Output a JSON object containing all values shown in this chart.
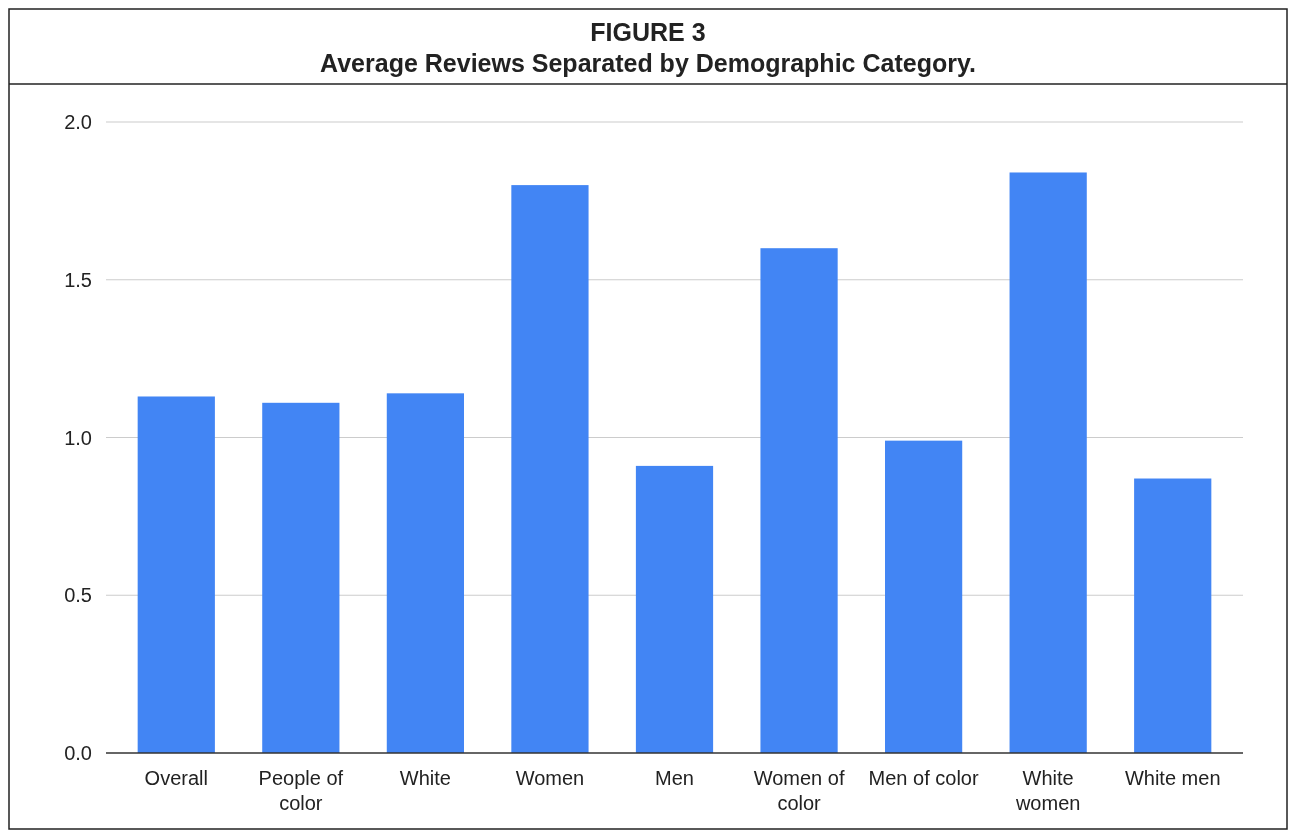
{
  "chart_data": {
    "type": "bar",
    "title": "FIGURE 3",
    "subtitle": "Average Reviews Separated by Demographic Category.",
    "categories": [
      "Overall",
      "People of color",
      "White",
      "Women",
      "Men",
      "Women of color",
      "Men of color",
      "White women",
      "White men"
    ],
    "values": [
      1.13,
      1.11,
      1.14,
      1.8,
      0.91,
      1.6,
      0.99,
      1.84,
      0.87
    ],
    "color": "#4285f4",
    "ylim": [
      0,
      2
    ],
    "yticks": [
      {
        "value": 0,
        "label": "0.0"
      },
      {
        "value": 0.5,
        "label": "0.5"
      },
      {
        "value": 1,
        "label": "1.0"
      },
      {
        "value": 1.5,
        "label": "1.5"
      },
      {
        "value": 2,
        "label": "2.0"
      }
    ],
    "grid": "y"
  }
}
